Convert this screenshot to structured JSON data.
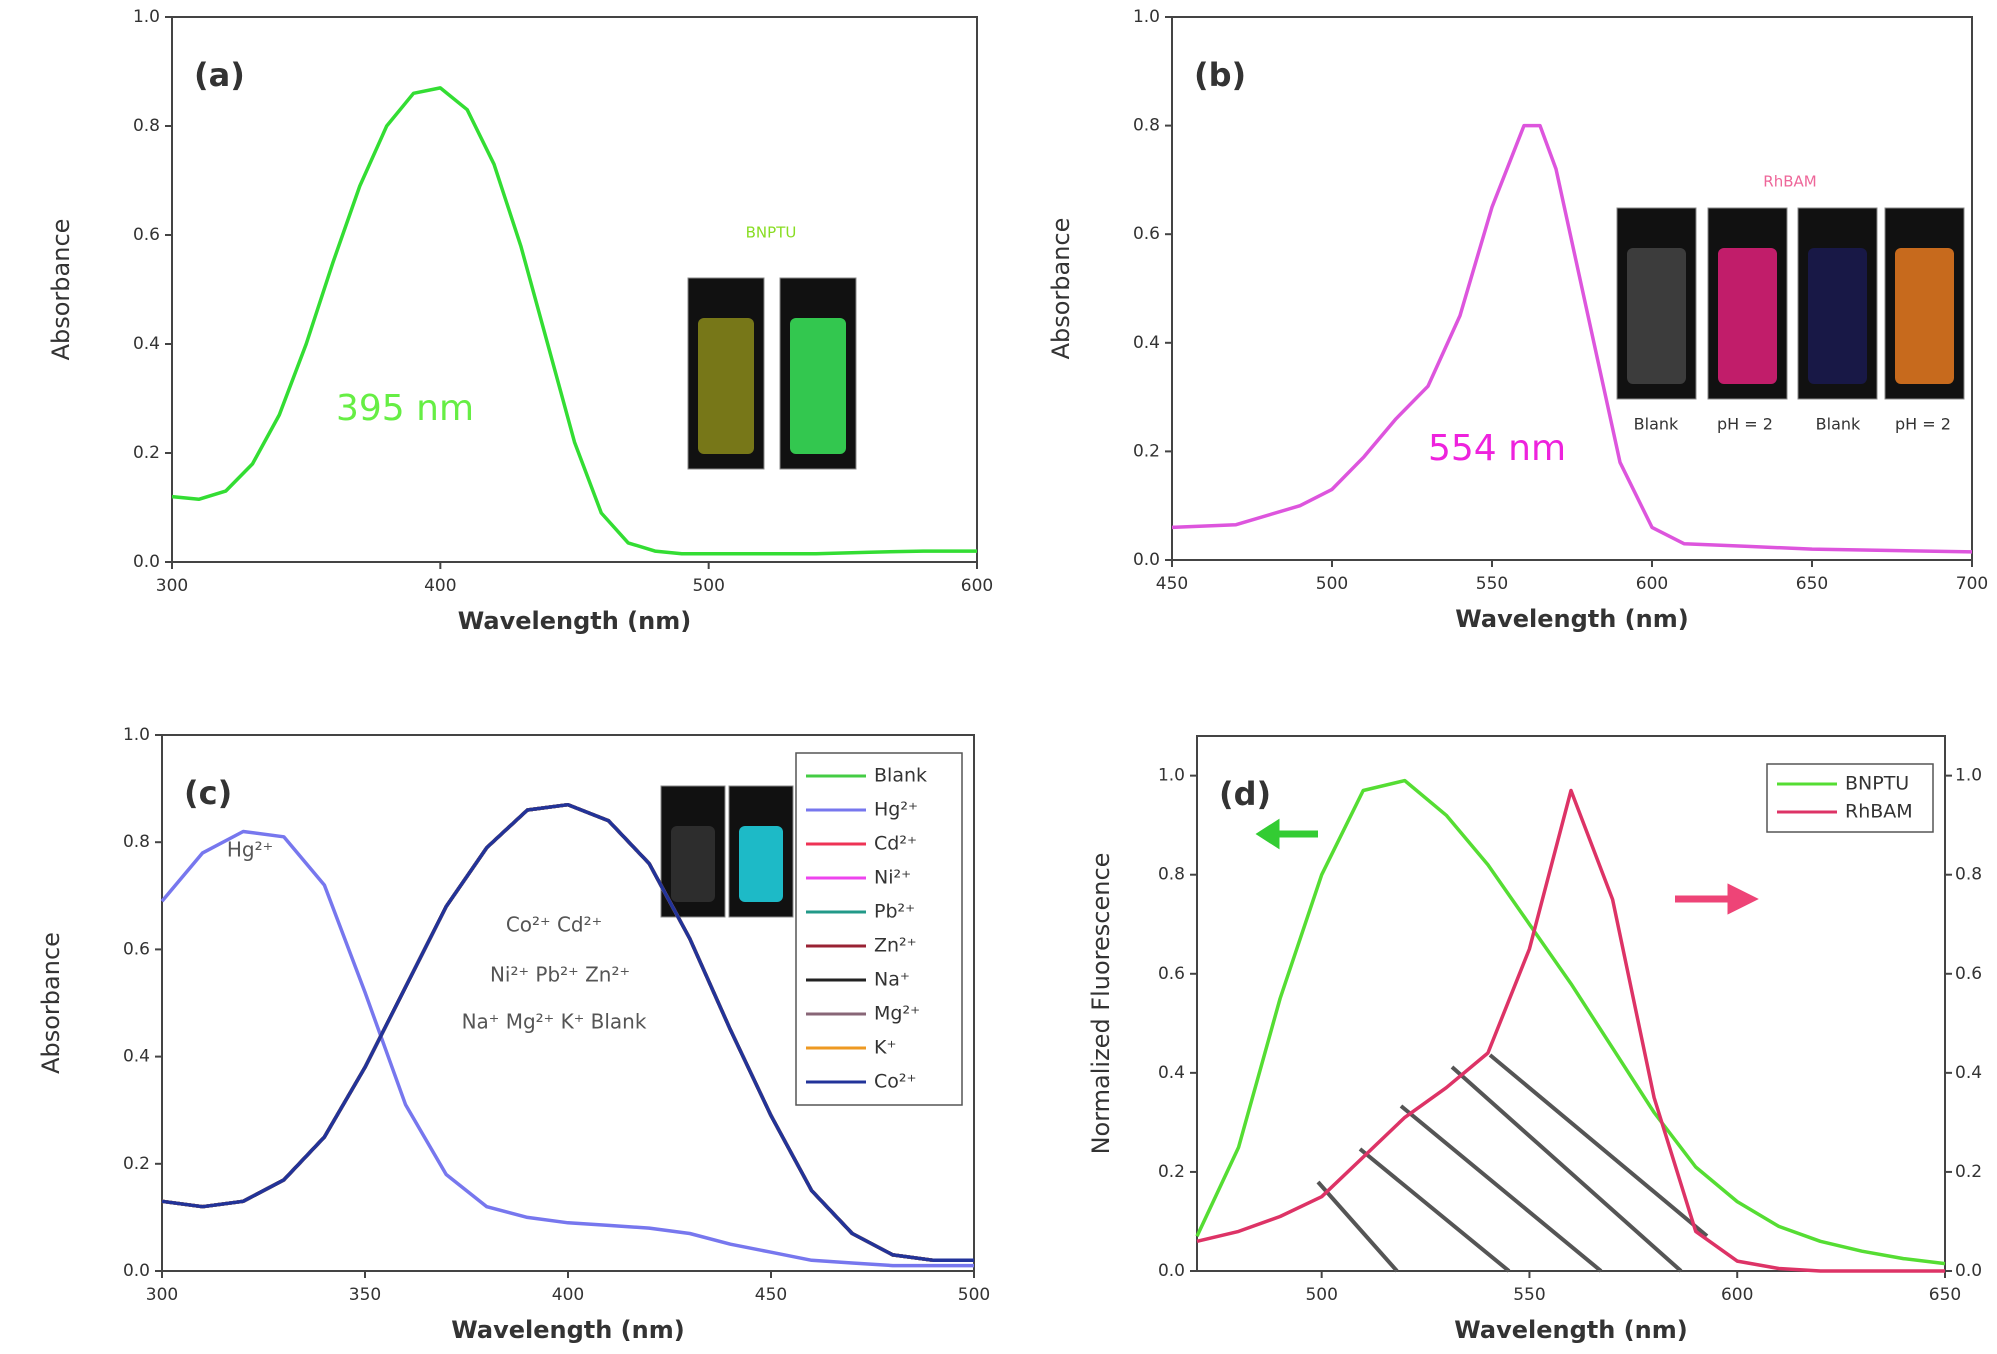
{
  "chart_data": [
    {
      "type": "line",
      "title": "(a)",
      "xlabel": "Wavelength (nm)",
      "ylabel": "Absorbance",
      "x": [
        300,
        310,
        320,
        330,
        340,
        350,
        360,
        370,
        380,
        390,
        400,
        410,
        420,
        430,
        440,
        450,
        460,
        470,
        480,
        490,
        500,
        520,
        540,
        560,
        580,
        600
      ],
      "series": [
        {
          "name": "BNPTU",
          "color": "#33dd33",
          "values": [
            0.12,
            0.115,
            0.13,
            0.18,
            0.27,
            0.4,
            0.55,
            0.69,
            0.8,
            0.86,
            0.87,
            0.83,
            0.73,
            0.58,
            0.4,
            0.22,
            0.09,
            0.035,
            0.02,
            0.015,
            0.015,
            0.015,
            0.015,
            0.018,
            0.02,
            0.02
          ]
        }
      ],
      "xlim": [
        300,
        600
      ],
      "ylim": [
        0,
        1
      ],
      "xticks": [
        300,
        400,
        500,
        600
      ],
      "yticks": [
        {
          "value": 0,
          "label": "0.0"
        },
        0.2,
        0.4,
        0.6,
        0.8,
        {
          "value": 1,
          "label": "1.0"
        }
      ],
      "annotations": [
        {
          "text": "395 nm",
          "color": "#66ee44"
        },
        {
          "text": "BNPTU",
          "color": "#88dd22"
        }
      ]
    },
    {
      "type": "line",
      "title": "(b)",
      "xlabel": "Wavelength (nm)",
      "ylabel": "Absorbance",
      "x": [
        450,
        470,
        490,
        500,
        510,
        520,
        530,
        540,
        550,
        560,
        565,
        570,
        580,
        590,
        600,
        610,
        630,
        650,
        700
      ],
      "series": [
        {
          "name": "RhBAM",
          "color": "#dd55dd",
          "values": [
            0.06,
            0.065,
            0.1,
            0.13,
            0.19,
            0.26,
            0.32,
            0.45,
            0.65,
            0.8,
            0.8,
            0.72,
            0.45,
            0.18,
            0.06,
            0.03,
            0.025,
            0.02,
            0.015
          ]
        }
      ],
      "xlim": [
        450,
        700
      ],
      "ylim": [
        0,
        1
      ],
      "xticks": [
        450,
        500,
        550,
        600,
        650,
        700
      ],
      "yticks": [
        {
          "value": 0,
          "label": "0.0"
        },
        0.2,
        0.4,
        0.6,
        0.8,
        {
          "value": 1,
          "label": "1.0"
        }
      ],
      "annotations": [
        {
          "text": "554 nm",
          "color": "#ee22dd"
        },
        {
          "text": "RhBAM",
          "color": "#ee6699"
        },
        {
          "text": "Blank",
          "color": "#333333"
        },
        {
          "text": "pH = 2",
          "color": "#333333"
        },
        {
          "text": "Blank",
          "color": "#333333"
        },
        {
          "text": "pH = 2",
          "color": "#333333"
        }
      ]
    },
    {
      "type": "line",
      "title": "(c)",
      "xlabel": "Wavelength (nm)",
      "ylabel": "Absorbance",
      "x": [
        300,
        310,
        320,
        330,
        340,
        350,
        360,
        370,
        380,
        390,
        400,
        410,
        420,
        430,
        440,
        450,
        460,
        470,
        480,
        490,
        500
      ],
      "series": [
        {
          "name": "Blank",
          "color": "#44cc44",
          "values": [
            0.13,
            0.12,
            0.13,
            0.17,
            0.25,
            0.38,
            0.53,
            0.68,
            0.79,
            0.86,
            0.87,
            0.84,
            0.76,
            0.62,
            0.45,
            0.29,
            0.15,
            0.07,
            0.03,
            0.02,
            0.02
          ]
        },
        {
          "name": "Hg²⁺",
          "color": "#7777ee",
          "values": [
            0.69,
            0.78,
            0.82,
            0.81,
            0.72,
            0.52,
            0.31,
            0.18,
            0.12,
            0.1,
            0.09,
            0.085,
            0.08,
            0.07,
            0.05,
            0.035,
            0.02,
            0.015,
            0.01,
            0.01,
            0.01
          ]
        },
        {
          "name": "Cd²⁺",
          "color": "#ee3355",
          "values": [
            0.13,
            0.12,
            0.13,
            0.17,
            0.25,
            0.38,
            0.53,
            0.68,
            0.79,
            0.86,
            0.87,
            0.84,
            0.76,
            0.62,
            0.45,
            0.29,
            0.15,
            0.07,
            0.03,
            0.02,
            0.02
          ]
        },
        {
          "name": "Ni²⁺",
          "color": "#ee44ee",
          "values": [
            0.13,
            0.12,
            0.13,
            0.17,
            0.25,
            0.38,
            0.53,
            0.68,
            0.79,
            0.86,
            0.87,
            0.84,
            0.76,
            0.62,
            0.45,
            0.29,
            0.15,
            0.07,
            0.03,
            0.02,
            0.02
          ]
        },
        {
          "name": "Pb²⁺",
          "color": "#229988",
          "values": [
            0.13,
            0.12,
            0.13,
            0.17,
            0.25,
            0.38,
            0.53,
            0.68,
            0.79,
            0.86,
            0.87,
            0.84,
            0.76,
            0.62,
            0.45,
            0.29,
            0.15,
            0.07,
            0.03,
            0.02,
            0.02
          ]
        },
        {
          "name": "Zn²⁺",
          "color": "#992233",
          "values": [
            0.13,
            0.12,
            0.13,
            0.17,
            0.25,
            0.38,
            0.53,
            0.68,
            0.79,
            0.86,
            0.87,
            0.84,
            0.76,
            0.62,
            0.45,
            0.29,
            0.15,
            0.07,
            0.03,
            0.02,
            0.02
          ]
        },
        {
          "name": "Na⁺",
          "color": "#222222",
          "values": [
            0.13,
            0.12,
            0.13,
            0.17,
            0.25,
            0.38,
            0.53,
            0.68,
            0.79,
            0.86,
            0.87,
            0.84,
            0.76,
            0.62,
            0.45,
            0.29,
            0.15,
            0.07,
            0.03,
            0.02,
            0.02
          ]
        },
        {
          "name": "Mg²⁺",
          "color": "#886677",
          "values": [
            0.13,
            0.12,
            0.13,
            0.17,
            0.25,
            0.38,
            0.53,
            0.68,
            0.79,
            0.86,
            0.87,
            0.84,
            0.76,
            0.62,
            0.45,
            0.29,
            0.15,
            0.07,
            0.03,
            0.02,
            0.02
          ]
        },
        {
          "name": "K⁺",
          "color": "#ee9922",
          "values": [
            0.13,
            0.12,
            0.13,
            0.17,
            0.25,
            0.38,
            0.53,
            0.68,
            0.79,
            0.86,
            0.87,
            0.84,
            0.76,
            0.62,
            0.45,
            0.29,
            0.15,
            0.07,
            0.03,
            0.02,
            0.02
          ]
        },
        {
          "name": "Co²⁺",
          "color": "#223399",
          "values": [
            0.13,
            0.12,
            0.13,
            0.17,
            0.25,
            0.38,
            0.53,
            0.68,
            0.79,
            0.86,
            0.87,
            0.84,
            0.76,
            0.62,
            0.45,
            0.29,
            0.15,
            0.07,
            0.03,
            0.02,
            0.02
          ]
        }
      ],
      "xlim": [
        300,
        500
      ],
      "ylim": [
        0,
        1
      ],
      "xticks": [
        300,
        350,
        400,
        450,
        500
      ],
      "yticks": [
        {
          "value": 0,
          "label": "0.0"
        },
        0.2,
        0.4,
        0.6,
        0.8,
        {
          "value": 1,
          "label": "1.0"
        }
      ],
      "legend": "upper right",
      "annotations": [
        {
          "text": "Hg²⁺",
          "color": "#555555"
        },
        {
          "text": "Co²⁺ Cd²⁺",
          "color": "#555555"
        },
        {
          "text": "Ni²⁺  Pb²⁺  Zn²⁺",
          "color": "#555555"
        },
        {
          "text": "Na⁺ Mg²⁺ K⁺ Blank",
          "color": "#555555"
        }
      ]
    },
    {
      "type": "line",
      "title": "(d)",
      "xlabel": "Wavelength (nm)",
      "ylabel": "Normalized Fluorescence",
      "x": [
        470,
        480,
        490,
        500,
        510,
        520,
        530,
        540,
        550,
        560,
        570,
        580,
        590,
        600,
        610,
        620,
        630,
        640,
        650
      ],
      "series": [
        {
          "name": "BNPTU",
          "color": "#55dd33",
          "values": [
            0.07,
            0.25,
            0.55,
            0.8,
            0.97,
            0.99,
            0.92,
            0.82,
            0.7,
            0.58,
            0.45,
            0.32,
            0.21,
            0.14,
            0.09,
            0.06,
            0.04,
            0.025,
            0.015
          ]
        },
        {
          "name": "RhBAM",
          "color": "#dd3366",
          "axis": "y2",
          "values": [
            0.06,
            0.08,
            0.11,
            0.15,
            0.23,
            0.31,
            0.37,
            0.44,
            0.65,
            0.97,
            0.75,
            0.35,
            0.08,
            0.02,
            0.005,
            0,
            0,
            0,
            0
          ]
        }
      ],
      "xlim": [
        470,
        650
      ],
      "ylim": [
        0,
        1.08
      ],
      "y2lim": [
        0,
        1.08
      ],
      "xticks": [
        500,
        550,
        600,
        650
      ],
      "yticks": [
        {
          "value": 0,
          "label": "0.0"
        },
        0.2,
        0.4,
        0.6,
        0.8,
        {
          "value": 1,
          "label": "1.0"
        }
      ],
      "y2ticks": [
        {
          "value": 0,
          "label": "0.0"
        },
        0.2,
        0.4,
        0.6,
        0.8,
        {
          "value": 1,
          "label": "1.0"
        }
      ],
      "legend": "upper right"
    }
  ]
}
